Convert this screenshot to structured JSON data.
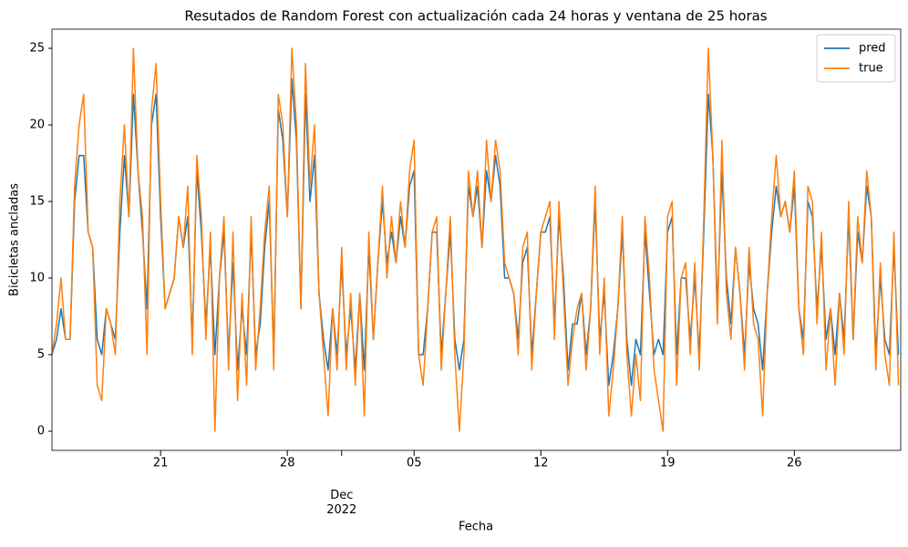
{
  "chart_data": {
    "type": "line",
    "title": "Resutados de Random Forest con actualización cada 24 horas y ventana de 25 horas",
    "xlabel": "Fecha",
    "ylabel": "Bicicletas ancladas",
    "x": [
      "2022-11-15T00",
      "2022-11-15T06",
      "2022-11-15T12",
      "2022-11-15T18",
      "2022-11-16T00",
      "2022-11-16T06",
      "2022-11-16T12",
      "2022-11-16T18",
      "2022-11-17T00",
      "2022-11-17T06",
      "2022-11-17T12",
      "2022-11-17T18",
      "2022-11-18T00",
      "2022-11-18T06",
      "2022-11-18T12",
      "2022-11-18T18",
      "2022-11-19T00",
      "2022-11-19T06",
      "2022-11-19T12",
      "2022-11-19T18",
      "2022-11-20T00",
      "2022-11-20T06",
      "2022-11-20T12",
      "2022-11-20T18",
      "2022-11-21T00",
      "2022-11-21T06",
      "2022-11-21T12",
      "2022-11-21T18",
      "2022-11-22T00",
      "2022-11-22T06",
      "2022-11-22T12",
      "2022-11-22T18",
      "2022-11-23T00",
      "2022-11-23T06",
      "2022-11-23T12",
      "2022-11-23T18",
      "2022-11-24T00",
      "2022-11-24T06",
      "2022-11-24T12",
      "2022-11-24T18",
      "2022-11-25T00",
      "2022-11-25T06",
      "2022-11-25T12",
      "2022-11-25T18",
      "2022-11-26T00",
      "2022-11-26T06",
      "2022-11-26T12",
      "2022-11-26T18",
      "2022-11-27T00",
      "2022-11-27T06",
      "2022-11-27T12",
      "2022-11-27T18",
      "2022-11-28T00",
      "2022-11-28T06",
      "2022-11-28T12",
      "2022-11-28T18",
      "2022-11-29T00",
      "2022-11-29T06",
      "2022-11-29T12",
      "2022-11-29T18",
      "2022-11-30T00",
      "2022-11-30T06",
      "2022-11-30T12",
      "2022-11-30T18",
      "2022-12-01T00",
      "2022-12-01T06",
      "2022-12-01T12",
      "2022-12-01T18",
      "2022-12-02T00",
      "2022-12-02T06",
      "2022-12-02T12",
      "2022-12-02T18",
      "2022-12-03T00",
      "2022-12-03T06",
      "2022-12-03T12",
      "2022-12-03T18",
      "2022-12-04T00",
      "2022-12-04T06",
      "2022-12-04T12",
      "2022-12-04T18",
      "2022-12-05T00",
      "2022-12-05T06",
      "2022-12-05T12",
      "2022-12-05T18",
      "2022-12-06T00",
      "2022-12-06T06",
      "2022-12-06T12",
      "2022-12-06T18",
      "2022-12-07T00",
      "2022-12-07T06",
      "2022-12-07T12",
      "2022-12-07T18",
      "2022-12-08T00",
      "2022-12-08T06",
      "2022-12-08T12",
      "2022-12-08T18",
      "2022-12-09T00",
      "2022-12-09T06",
      "2022-12-09T12",
      "2022-12-09T18",
      "2022-12-10T00",
      "2022-12-10T06",
      "2022-12-10T12",
      "2022-12-10T18",
      "2022-12-11T00",
      "2022-12-11T06",
      "2022-12-11T12",
      "2022-12-11T18",
      "2022-12-12T00",
      "2022-12-12T06",
      "2022-12-12T12",
      "2022-12-12T18",
      "2022-12-13T00",
      "2022-12-13T06",
      "2022-12-13T12",
      "2022-12-13T18",
      "2022-12-14T00",
      "2022-12-14T06",
      "2022-12-14T12",
      "2022-12-14T18",
      "2022-12-15T00",
      "2022-12-15T06",
      "2022-12-15T12",
      "2022-12-15T18",
      "2022-12-16T00",
      "2022-12-16T06",
      "2022-12-16T12",
      "2022-12-16T18",
      "2022-12-17T00",
      "2022-12-17T06",
      "2022-12-17T12",
      "2022-12-17T18",
      "2022-12-18T00",
      "2022-12-18T06",
      "2022-12-18T12",
      "2022-12-18T18",
      "2022-12-19T00",
      "2022-12-19T06",
      "2022-12-19T12",
      "2022-12-19T18",
      "2022-12-20T00",
      "2022-12-20T06",
      "2022-12-20T12",
      "2022-12-20T18",
      "2022-12-21T00",
      "2022-12-21T06",
      "2022-12-21T12",
      "2022-12-21T18",
      "2022-12-22T00",
      "2022-12-22T06",
      "2022-12-22T12",
      "2022-12-22T18",
      "2022-12-23T00",
      "2022-12-23T06",
      "2022-12-23T12",
      "2022-12-23T18",
      "2022-12-24T00",
      "2022-12-24T06",
      "2022-12-24T12",
      "2022-12-24T18",
      "2022-12-25T00",
      "2022-12-25T06",
      "2022-12-25T12",
      "2022-12-25T18",
      "2022-12-26T00",
      "2022-12-26T06",
      "2022-12-26T12",
      "2022-12-26T18",
      "2022-12-27T00",
      "2022-12-27T06",
      "2022-12-27T12",
      "2022-12-27T18",
      "2022-12-28T00",
      "2022-12-28T06",
      "2022-12-28T12",
      "2022-12-28T18",
      "2022-12-29T00",
      "2022-12-29T06",
      "2022-12-29T12",
      "2022-12-29T18",
      "2022-12-30T00",
      "2022-12-30T06",
      "2022-12-30T12",
      "2022-12-30T18",
      "2022-12-31T00",
      "2022-12-31T06",
      "2022-12-31T12",
      "2022-12-31T18"
    ],
    "series": [
      {
        "name": "pred",
        "color": "#1f77b4",
        "values": [
          5,
          6,
          8,
          6,
          6,
          15,
          18,
          18,
          13,
          12,
          6,
          5,
          8,
          7,
          6,
          13,
          18,
          14,
          22,
          17,
          13,
          8,
          20,
          22,
          14,
          8,
          9,
          10,
          14,
          12,
          14,
          6,
          17,
          13,
          7,
          12,
          5,
          10,
          13,
          5,
          11,
          4,
          8,
          5,
          13,
          5,
          7,
          12,
          15,
          5,
          21,
          19,
          14,
          23,
          19,
          8,
          22,
          15,
          18,
          9,
          6,
          4,
          8,
          5,
          11,
          5,
          8,
          4,
          9,
          4,
          12,
          6,
          11,
          15,
          11,
          13,
          11,
          14,
          12,
          16,
          17,
          5,
          5,
          8,
          13,
          13,
          5,
          9,
          13,
          6,
          4,
          6,
          16,
          14,
          16,
          12,
          17,
          15,
          18,
          16,
          10,
          10,
          9,
          6,
          11,
          12,
          5,
          9,
          13,
          13,
          14,
          7,
          14,
          10,
          4,
          7,
          7,
          9,
          5,
          8,
          15,
          6,
          9,
          3,
          5,
          8,
          13,
          6,
          3,
          6,
          5,
          13,
          9,
          5,
          6,
          5,
          13,
          14,
          5,
          10,
          10,
          6,
          10,
          5,
          13,
          22,
          18,
          8,
          17,
          10,
          7,
          12,
          9,
          5,
          11,
          8,
          7,
          4,
          9,
          13,
          16,
          14,
          15,
          13,
          16,
          8,
          6,
          15,
          14,
          8,
          12,
          6,
          8,
          5,
          9,
          6,
          14,
          6,
          13,
          11,
          16,
          14,
          5,
          10,
          6,
          5,
          12,
          5
        ]
      },
      {
        "name": "true",
        "color": "#ff7f0e",
        "values": [
          5,
          7,
          10,
          6,
          6,
          16,
          20,
          22,
          13,
          12,
          3,
          2,
          8,
          7,
          5,
          15,
          20,
          14,
          25,
          17,
          14,
          5,
          21,
          24,
          15,
          8,
          9,
          10,
          14,
          12,
          16,
          5,
          18,
          14,
          6,
          13,
          0,
          10,
          14,
          4,
          13,
          2,
          9,
          3,
          14,
          4,
          8,
          13,
          16,
          4,
          22,
          20,
          14,
          25,
          20,
          8,
          24,
          16,
          20,
          9,
          5,
          1,
          8,
          4,
          12,
          4,
          9,
          3,
          9,
          1,
          13,
          6,
          11,
          16,
          10,
          14,
          11,
          15,
          12,
          17,
          19,
          5,
          3,
          8,
          13,
          14,
          4,
          9,
          14,
          5,
          0,
          5,
          17,
          14,
          17,
          12,
          19,
          15,
          19,
          17,
          11,
          10,
          9,
          5,
          12,
          13,
          4,
          9,
          13,
          14,
          15,
          6,
          15,
          9,
          3,
          6,
          8,
          9,
          4,
          8,
          16,
          5,
          10,
          1,
          4,
          8,
          14,
          5,
          1,
          5,
          2,
          14,
          10,
          4,
          2,
          0,
          14,
          15,
          3,
          10,
          11,
          5,
          11,
          4,
          14,
          25,
          18,
          7,
          19,
          9,
          6,
          12,
          9,
          4,
          12,
          7,
          6,
          1,
          9,
          14,
          18,
          14,
          15,
          13,
          17,
          8,
          5,
          16,
          15,
          7,
          13,
          4,
          8,
          3,
          9,
          5,
          15,
          6,
          14,
          11,
          17,
          14,
          4,
          11,
          5,
          3,
          13,
          3
        ]
      }
    ],
    "xlim": [
      "2022-11-15T00",
      "2022-12-31T21"
    ],
    "xticks": [
      {
        "value": "2022-11-21",
        "label": "21"
      },
      {
        "value": "2022-11-28",
        "label": "28"
      },
      {
        "value": "2022-12-01",
        "label": "Dec\n2022"
      },
      {
        "value": "2022-12-05",
        "label": "05"
      },
      {
        "value": "2022-12-12",
        "label": "12"
      },
      {
        "value": "2022-12-19",
        "label": "19"
      },
      {
        "value": "2022-12-26",
        "label": "26"
      }
    ],
    "ylim": [
      -1.25,
      26.25
    ],
    "yticks": [
      0,
      5,
      10,
      15,
      20,
      25
    ],
    "legend": "upper right"
  }
}
